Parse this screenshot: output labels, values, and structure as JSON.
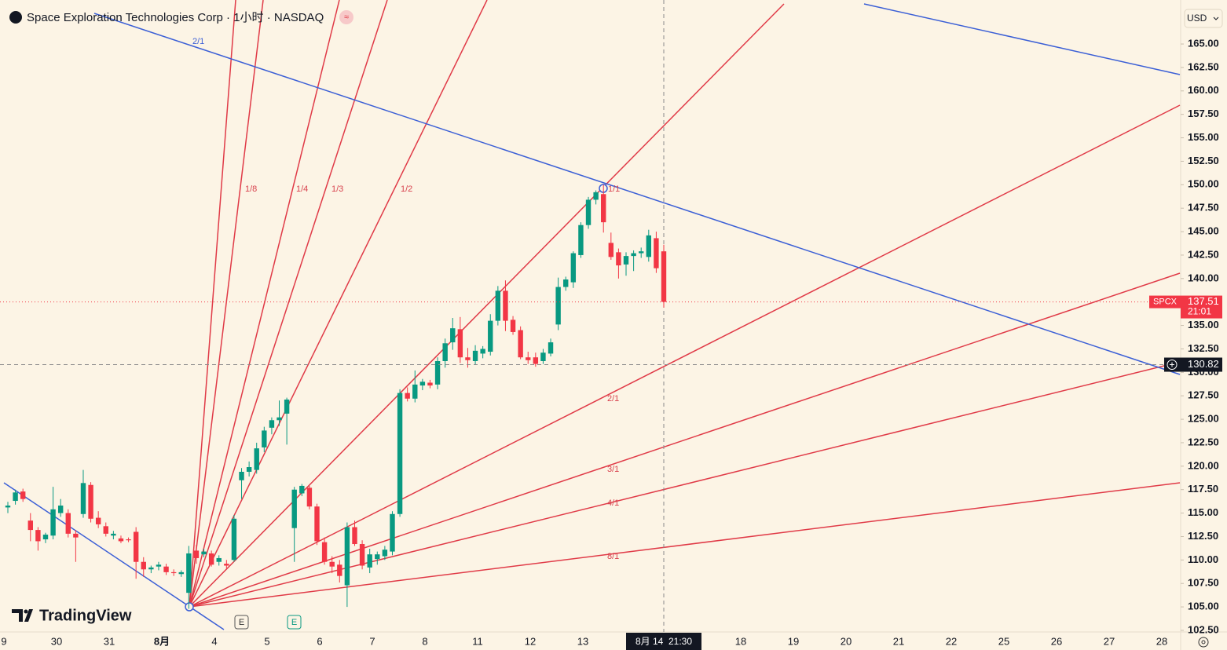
{
  "chart_data": {
    "type": "candlestick",
    "title": "Space Exploration Technologies Corp · 1小时 · NASDAQ",
    "currency": "USD",
    "brand": "TradingView",
    "event_icons": [
      "E",
      "E"
    ],
    "up_color": "#089981",
    "down_color": "#f23645",
    "open": [
      115.6,
      116.3,
      117.3,
      114.2,
      113.2,
      112.2,
      112.6,
      115.0,
      115.0,
      112.8,
      114.9,
      118.0,
      114.5,
      113.6,
      112.6,
      112.3,
      112.2,
      113.0,
      109.8,
      109.0,
      109.3,
      109.3,
      108.7,
      108.5,
      106.5,
      111.0,
      110.6,
      110.7,
      109.8,
      109.6,
      110.0,
      118.5,
      119.4,
      119.6,
      122.0,
      124.1,
      124.9,
      125.6,
      113.4,
      117.1,
      117.7,
      115.7,
      111.9,
      109.8,
      109.5,
      107.3,
      113.5,
      111.7,
      109.2,
      110.1,
      110.4,
      110.9,
      114.9,
      127.8,
      127.2,
      128.6,
      128.9,
      128.7,
      131.2,
      133.2,
      134.6,
      131.6,
      131.2,
      132.0,
      132.2,
      135.5,
      138.7,
      135.6,
      134.5,
      131.6,
      131.6,
      131.2,
      132.0,
      135.1,
      139.1,
      139.6,
      142.5,
      145.7,
      148.4,
      149.0,
      143.8,
      142.8,
      141.5,
      142.4,
      142.7,
      142.3,
      144.3,
      142.9
    ],
    "high": [
      116.2,
      117.5,
      117.6,
      115.0,
      113.5,
      112.9,
      117.8,
      116.5,
      115.4,
      113.2,
      119.6,
      118.3,
      115.2,
      114.0,
      113.1,
      112.6,
      112.4,
      113.5,
      110.3,
      109.4,
      109.8,
      109.6,
      109.0,
      108.9,
      111.5,
      111.6,
      111.2,
      111.0,
      110.5,
      110.0,
      114.8,
      119.8,
      120.5,
      122.5,
      124.2,
      125.2,
      127.0,
      127.3,
      117.8,
      118.1,
      117.9,
      116.0,
      112.4,
      110.4,
      110.0,
      114.0,
      114.2,
      112.1,
      111.2,
      110.9,
      111.5,
      115.2,
      128.2,
      128.4,
      130.2,
      129.3,
      129.2,
      131.6,
      133.6,
      135.8,
      135.9,
      132.6,
      132.9,
      132.8,
      136.2,
      139.2,
      139.8,
      136.0,
      134.9,
      132.2,
      132.1,
      132.5,
      133.6,
      140.1,
      140.2,
      142.9,
      146.0,
      148.7,
      149.4,
      150.0,
      144.9,
      143.2,
      142.8,
      143.0,
      143.3,
      145.2,
      145.0,
      143.6
    ],
    "low": [
      115.0,
      115.9,
      116.2,
      112.0,
      111.0,
      111.8,
      112.2,
      114.6,
      112.4,
      109.8,
      114.5,
      114.0,
      113.4,
      112.5,
      112.2,
      111.8,
      111.9,
      108.0,
      108.2,
      108.6,
      108.9,
      108.4,
      108.3,
      108.2,
      104.8,
      109.6,
      110.3,
      109.3,
      109.4,
      109.1,
      109.8,
      116.5,
      118.9,
      119.2,
      121.5,
      123.4,
      124.3,
      122.3,
      109.8,
      116.8,
      115.4,
      111.6,
      109.5,
      108.6,
      107.6,
      105.0,
      111.5,
      109.0,
      108.6,
      109.5,
      110.0,
      110.5,
      114.6,
      126.9,
      126.8,
      128.1,
      128.3,
      128.2,
      130.5,
      132.4,
      131.0,
      130.5,
      130.8,
      131.5,
      131.8,
      135.0,
      134.4,
      134.0,
      131.4,
      130.9,
      130.6,
      130.9,
      131.7,
      134.5,
      138.7,
      139.0,
      142.2,
      145.3,
      147.9,
      144.9,
      142.0,
      140.0,
      140.3,
      140.8,
      142.2,
      141.8,
      140.6,
      136.9
    ],
    "close": [
      115.8,
      117.2,
      116.5,
      113.2,
      112.0,
      112.7,
      115.4,
      115.8,
      112.8,
      112.4,
      118.2,
      114.4,
      113.8,
      112.8,
      112.8,
      112.0,
      112.1,
      109.8,
      109.0,
      109.2,
      109.5,
      108.7,
      108.6,
      108.7,
      110.7,
      110.2,
      110.9,
      109.5,
      110.2,
      109.4,
      114.4,
      119.4,
      119.9,
      121.9,
      123.8,
      124.9,
      125.2,
      127.1,
      117.5,
      117.9,
      115.7,
      112.0,
      109.8,
      109.3,
      108.3,
      113.5,
      111.7,
      109.4,
      110.6,
      110.6,
      111.1,
      114.9,
      127.8,
      127.2,
      128.7,
      129.0,
      128.6,
      131.2,
      133.1,
      134.7,
      131.6,
      131.3,
      132.3,
      132.5,
      135.5,
      138.7,
      135.5,
      134.3,
      131.6,
      131.3,
      130.9,
      132.1,
      133.2,
      139.1,
      139.9,
      142.7,
      145.7,
      148.4,
      149.2,
      146.0,
      142.3,
      141.4,
      142.4,
      142.7,
      142.9,
      144.6,
      141.1,
      137.51
    ],
    "ylim": [
      102.33,
      169.69
    ],
    "yticks": [
      {
        "value": 102.5,
        "label": "102.50"
      },
      {
        "value": 105,
        "label": "105.00"
      },
      {
        "value": 107.5,
        "label": "107.50"
      },
      {
        "value": 110,
        "label": "110.00"
      },
      {
        "value": 112.5,
        "label": "112.50"
      },
      {
        "value": 115,
        "label": "115.00"
      },
      {
        "value": 117.5,
        "label": "117.50"
      },
      {
        "value": 120,
        "label": "120.00"
      },
      {
        "value": 122.5,
        "label": "122.50"
      },
      {
        "value": 125,
        "label": "125.00"
      },
      {
        "value": 127.5,
        "label": "127.50"
      },
      {
        "value": 130,
        "label": "130.00"
      },
      {
        "value": 132.5,
        "label": "132.50"
      },
      {
        "value": 135,
        "label": "135.00"
      },
      {
        "value": 137.5,
        "label": "137.50"
      },
      {
        "value": 140,
        "label": "140.00"
      },
      {
        "value": 142.5,
        "label": "142.50"
      },
      {
        "value": 145,
        "label": "145.00"
      },
      {
        "value": 147.5,
        "label": "147.50"
      },
      {
        "value": 150,
        "label": "150.00"
      },
      {
        "value": 152.5,
        "label": "152.50"
      },
      {
        "value": 155,
        "label": "155.00"
      },
      {
        "value": 157.5,
        "label": "157.50"
      },
      {
        "value": 160,
        "label": "160.00"
      },
      {
        "value": 162.5,
        "label": "162.50"
      },
      {
        "value": 165,
        "label": "165.00"
      }
    ],
    "x_labels": [
      "9",
      "30",
      "31",
      "8月",
      "4",
      "5",
      "6",
      "7",
      "8",
      "11",
      "12",
      "13",
      null,
      null,
      "18",
      "19",
      "20",
      "21",
      "22",
      "25",
      "26",
      "27",
      "28"
    ],
    "last_price": 137.51,
    "last_price_symbol": "SPCX",
    "countdown": "21:01",
    "crosshair": {
      "price": 130.82,
      "time_label": "8月 14  21:30"
    },
    "fan_labels": [
      "1/8",
      "1/4",
      "1/3",
      "1/2",
      "1/1",
      "2/1",
      "3/1",
      "4/1",
      "8/1",
      "2/1"
    ]
  }
}
